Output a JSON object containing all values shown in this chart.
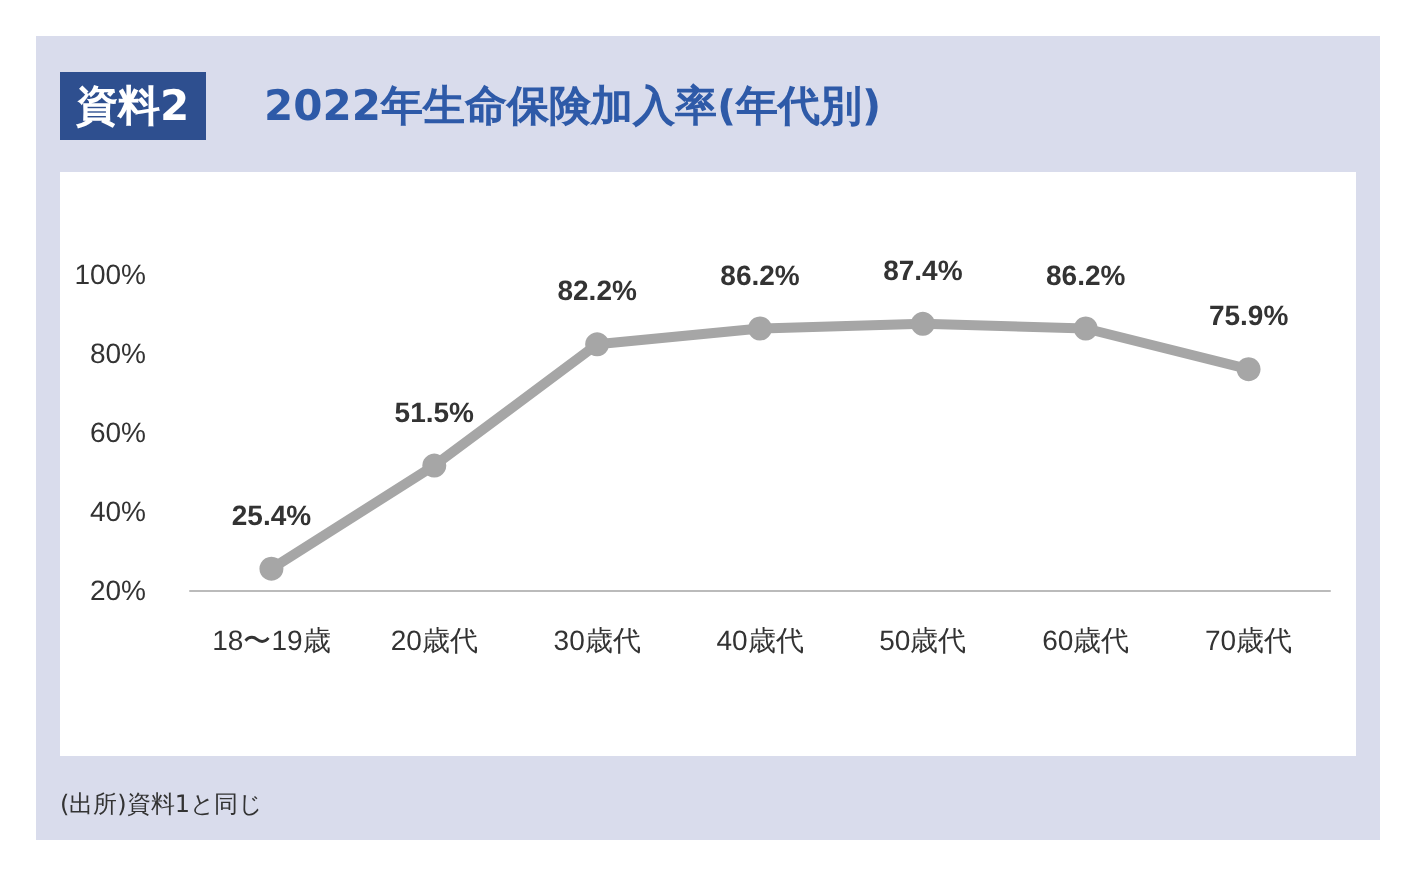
{
  "chart_data": {
    "type": "line",
    "title": "2022年生命保険加入率(年代別)",
    "categories": [
      "18〜19歳",
      "20歳代",
      "30歳代",
      "40歳代",
      "50歳代",
      "60歳代",
      "70歳代"
    ],
    "series": [
      {
        "color": "#a6a6a6",
        "values": [
          25.4,
          51.5,
          82.2,
          86.2,
          87.4,
          86.2,
          75.9
        ],
        "value_labels": [
          "25.4%",
          "51.5%",
          "82.2%",
          "86.2%",
          "87.4%",
          "86.2%",
          "75.9%"
        ]
      }
    ],
    "ylim": [
      20,
      100
    ],
    "yticks": [
      {
        "value": 20,
        "label": "20%"
      },
      {
        "value": 40,
        "label": "40%"
      },
      {
        "value": 60,
        "label": "60%"
      },
      {
        "value": 80,
        "label": "80%"
      },
      {
        "value": 100,
        "label": "100%"
      }
    ],
    "grid": false,
    "marker": "circle",
    "line_style": "solid",
    "annotations": [
      "資料2",
      "(出所)資料1と同じ"
    ]
  }
}
